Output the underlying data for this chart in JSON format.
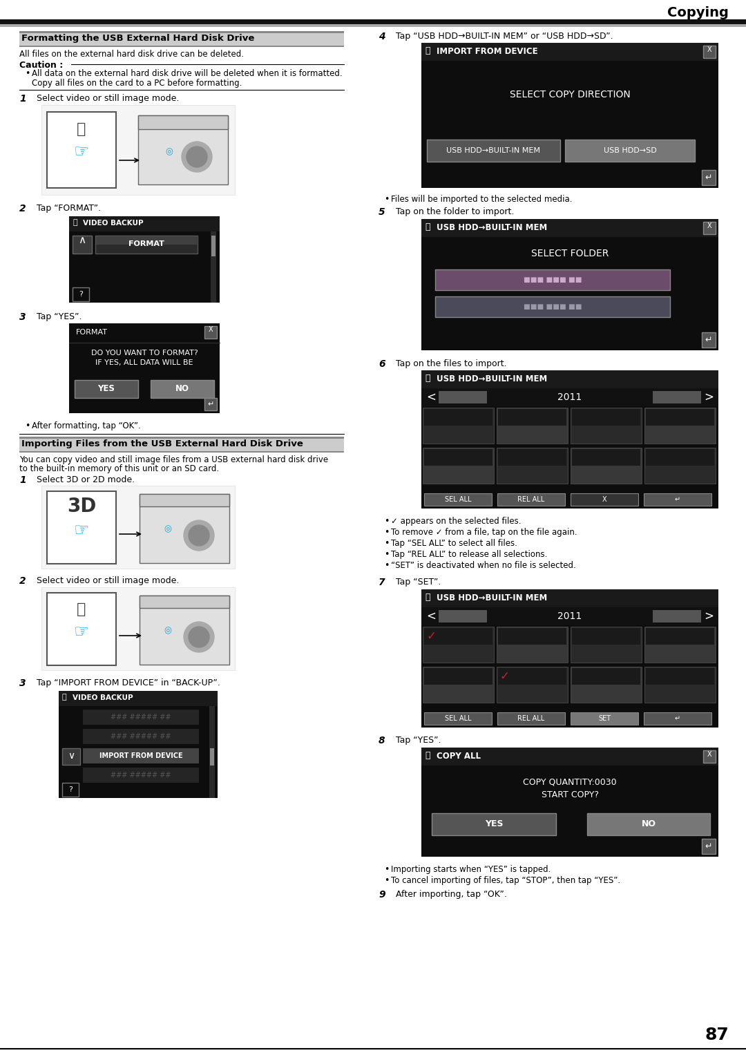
{
  "page_number": "87",
  "header_title": "Copying",
  "bg_color": "#ffffff",
  "section1_title": "Formatting the USB External Hard Disk Drive",
  "section1_desc": "All files on the external hard disk drive can be deleted.",
  "caution_title": "Caution :",
  "caution_text1": "All data on the external hard disk drive will be deleted when it is formatted.",
  "caution_text2": "Copy all files on the card to a PC before formatting.",
  "section2_title": "Importing Files from the USB External Hard Disk Drive",
  "section2_desc1": "You can copy video and still image files from a USB external hard disk drive",
  "section2_desc2": "to the built-in memory of this unit or an SD card."
}
